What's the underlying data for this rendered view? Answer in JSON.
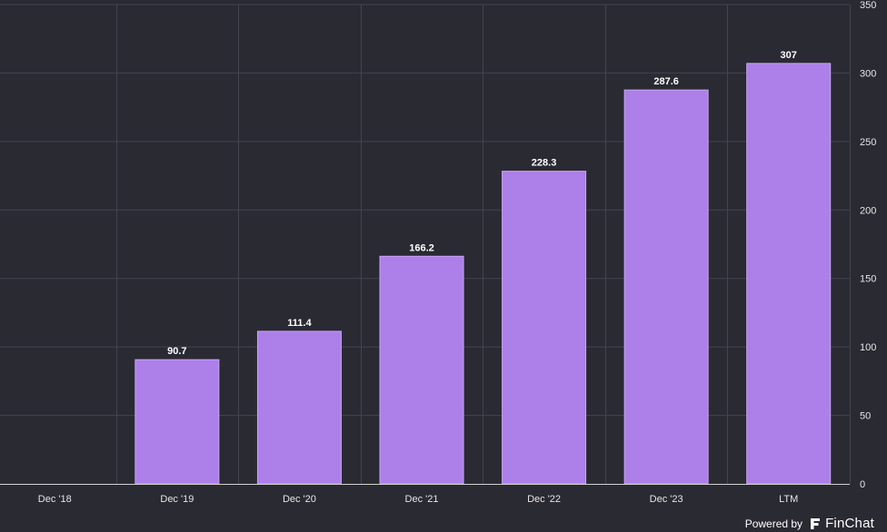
{
  "chart_data": {
    "type": "bar",
    "categories": [
      "Dec '18",
      "Dec '19",
      "Dec '20",
      "Dec '21",
      "Dec '22",
      "Dec '23",
      "LTM"
    ],
    "values": [
      null,
      90.7,
      111.4,
      166.2,
      228.3,
      287.6,
      307
    ],
    "data_labels": [
      "",
      "90.7",
      "111.4",
      "166.2",
      "228.3",
      "287.6",
      "307"
    ],
    "title": "",
    "xlabel": "",
    "ylabel": "",
    "ylim": [
      0,
      350
    ],
    "yticks": [
      "0",
      "50",
      "100",
      "150",
      "200",
      "250",
      "300",
      "350"
    ],
    "y_axis_side": "right",
    "grid": true,
    "legend": "none"
  },
  "colors": {
    "background": "#2a2a33",
    "bar_fill": "#ad7fe8",
    "bar_stroke": "#c7a6f2",
    "grid": "#444450",
    "axis_line": "#d0d0d0",
    "text": "#ffffff",
    "tick_text": "#e6e6e6"
  },
  "branding": {
    "powered_by": "Powered by",
    "name": "FinChat",
    "logo_icon": "finchat-logo-icon"
  }
}
